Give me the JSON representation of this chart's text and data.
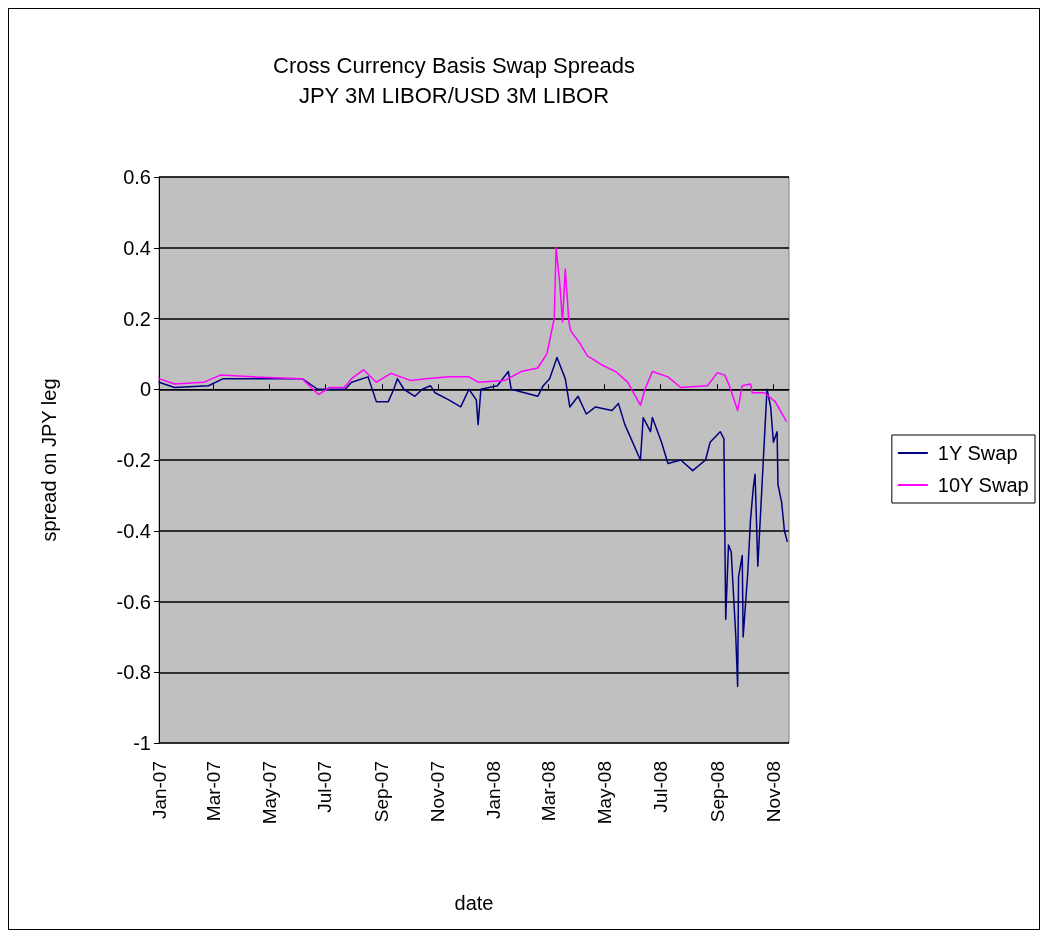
{
  "chart_data": {
    "type": "line",
    "title": "Cross Currency Basis Swap Spreads",
    "subtitle": "JPY 3M LIBOR/USD 3M LIBOR",
    "xlabel": "date",
    "ylabel": "spread on JPY leg",
    "xlim": [
      "2007-01-01",
      "2008-11-18"
    ],
    "xticks": [
      {
        "value": "2007-01-01",
        "label": "Jan-07"
      },
      {
        "value": "2007-03-01",
        "label": "Mar-07"
      },
      {
        "value": "2007-05-01",
        "label": "May-07"
      },
      {
        "value": "2007-07-01",
        "label": "Jul-07"
      },
      {
        "value": "2007-09-01",
        "label": "Sep-07"
      },
      {
        "value": "2007-11-01",
        "label": "Nov-07"
      },
      {
        "value": "2008-01-01",
        "label": "Jan-08"
      },
      {
        "value": "2008-03-01",
        "label": "Mar-08"
      },
      {
        "value": "2008-05-01",
        "label": "May-08"
      },
      {
        "value": "2008-07-01",
        "label": "Jul-08"
      },
      {
        "value": "2008-09-01",
        "label": "Sep-08"
      },
      {
        "value": "2008-11-01",
        "label": "Nov-08"
      }
    ],
    "ylim": [
      -1,
      0.6
    ],
    "yticks": [
      -1,
      -0.8,
      -0.6,
      -0.4,
      -0.2,
      0,
      0.2,
      0.4,
      0.6
    ],
    "grid": "y",
    "legend": "right",
    "marker": "none",
    "line_style": "solid",
    "series": [
      {
        "name": "1Y Swap",
        "color": "#000080",
        "x": [
          "2007-01-01",
          "2007-01-18",
          "2007-02-24",
          "2007-03-12",
          "2007-06-06",
          "2007-06-23",
          "2007-07-23",
          "2007-07-30",
          "2007-08-17",
          "2007-08-26",
          "2007-09-08",
          "2007-09-14",
          "2007-09-18",
          "2007-09-25",
          "2007-10-07",
          "2007-10-15",
          "2007-10-24",
          "2007-10-29",
          "2007-11-13",
          "2007-11-26",
          "2007-12-05",
          "2007-12-13",
          "2007-12-15",
          "2007-12-18",
          "2008-01-05",
          "2008-01-17",
          "2008-01-20",
          "2008-02-18",
          "2008-02-24",
          "2008-03-02",
          "2008-03-10",
          "2008-03-19",
          "2008-03-24",
          "2008-04-02",
          "2008-04-11",
          "2008-04-21",
          "2008-05-09",
          "2008-05-16",
          "2008-05-23",
          "2008-06-09",
          "2008-06-12",
          "2008-06-20",
          "2008-06-22",
          "2008-07-02",
          "2008-07-09",
          "2008-07-23",
          "2008-08-05",
          "2008-08-19",
          "2008-08-24",
          "2008-09-04",
          "2008-09-08",
          "2008-09-09",
          "2008-09-10",
          "2008-09-13",
          "2008-09-16",
          "2008-09-21",
          "2008-09-23",
          "2008-09-24",
          "2008-09-28",
          "2008-09-29",
          "2008-10-04",
          "2008-10-07",
          "2008-10-10",
          "2008-10-12",
          "2008-10-15",
          "2008-10-19",
          "2008-10-22",
          "2008-10-25",
          "2008-10-29",
          "2008-11-01",
          "2008-11-05",
          "2008-11-06",
          "2008-11-10",
          "2008-11-13",
          "2008-11-16"
        ],
        "values": [
          0.02,
          0.005,
          0.01,
          0.03,
          0.03,
          0.0,
          0.0,
          0.02,
          0.035,
          -0.035,
          -0.035,
          0.0,
          0.03,
          0.0,
          -0.02,
          0.0,
          0.01,
          -0.01,
          -0.03,
          -0.05,
          0.0,
          -0.03,
          -0.1,
          0.0,
          0.01,
          0.05,
          0.0,
          -0.02,
          0.01,
          0.03,
          0.09,
          0.03,
          -0.05,
          -0.02,
          -0.07,
          -0.05,
          -0.06,
          -0.04,
          -0.1,
          -0.2,
          -0.08,
          -0.12,
          -0.08,
          -0.15,
          -0.21,
          -0.2,
          -0.23,
          -0.2,
          -0.15,
          -0.12,
          -0.14,
          -0.4,
          -0.65,
          -0.44,
          -0.46,
          -0.7,
          -0.84,
          -0.53,
          -0.47,
          -0.7,
          -0.52,
          -0.37,
          -0.28,
          -0.24,
          -0.5,
          -0.3,
          -0.15,
          0.0,
          -0.05,
          -0.15,
          -0.12,
          -0.27,
          -0.32,
          -0.4,
          -0.43
        ]
      },
      {
        "name": "10Y Swap",
        "color": "#ff00ff",
        "x": [
          "2007-01-01",
          "2007-01-18",
          "2007-02-19",
          "2007-03-09",
          "2007-04-13",
          "2007-06-06",
          "2007-06-24",
          "2007-07-06",
          "2007-07-22",
          "2007-07-30",
          "2007-08-12",
          "2007-08-26",
          "2007-09-11",
          "2007-10-02",
          "2007-10-19",
          "2007-11-13",
          "2007-12-05",
          "2007-12-15",
          "2008-01-13",
          "2008-01-31",
          "2008-02-18",
          "2008-02-28",
          "2008-03-07",
          "2008-03-09",
          "2008-03-13",
          "2008-03-16",
          "2008-03-19",
          "2008-03-23",
          "2008-03-25",
          "2008-04-04",
          "2008-04-12",
          "2008-04-27",
          "2008-05-13",
          "2008-05-26",
          "2008-06-09",
          "2008-06-14",
          "2008-06-22",
          "2008-07-09",
          "2008-07-23",
          "2008-08-21",
          "2008-09-01",
          "2008-09-09",
          "2008-09-14",
          "2008-09-23",
          "2008-09-28",
          "2008-10-07",
          "2008-10-09",
          "2008-10-22",
          "2008-11-03",
          "2008-11-15"
        ],
        "values": [
          0.03,
          0.015,
          0.02,
          0.04,
          0.035,
          0.03,
          -0.015,
          0.005,
          0.005,
          0.03,
          0.055,
          0.02,
          0.045,
          0.025,
          0.03,
          0.035,
          0.035,
          0.02,
          0.025,
          0.05,
          0.06,
          0.1,
          0.2,
          0.4,
          0.3,
          0.19,
          0.34,
          0.19,
          0.165,
          0.13,
          0.095,
          0.07,
          0.05,
          0.02,
          -0.045,
          0.0,
          0.05,
          0.035,
          0.005,
          0.01,
          0.047,
          0.04,
          0.01,
          -0.06,
          0.01,
          0.015,
          -0.01,
          -0.01,
          -0.035,
          -0.09
        ]
      }
    ]
  }
}
